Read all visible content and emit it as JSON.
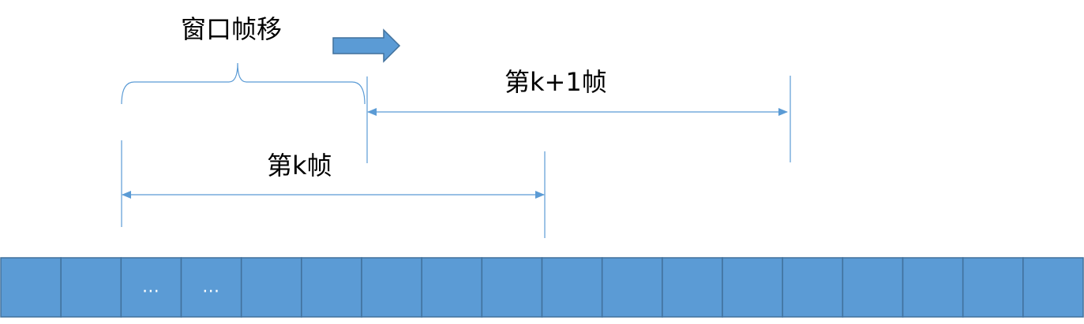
{
  "labels": {
    "window_shift": "窗口帧移",
    "frame_k": "第k帧",
    "frame_k_plus_1": "第k+1帧",
    "ellipsis": "…"
  },
  "cells": {
    "count": 18,
    "ellipsis_cells": [
      2,
      3
    ],
    "fill": "#5b9bd5",
    "border": "#41719c"
  },
  "colors": {
    "line": "#5b9bd5",
    "arrow_fill": "#5b9bd5",
    "arrow_border": "#41719c",
    "text": "#000000"
  }
}
